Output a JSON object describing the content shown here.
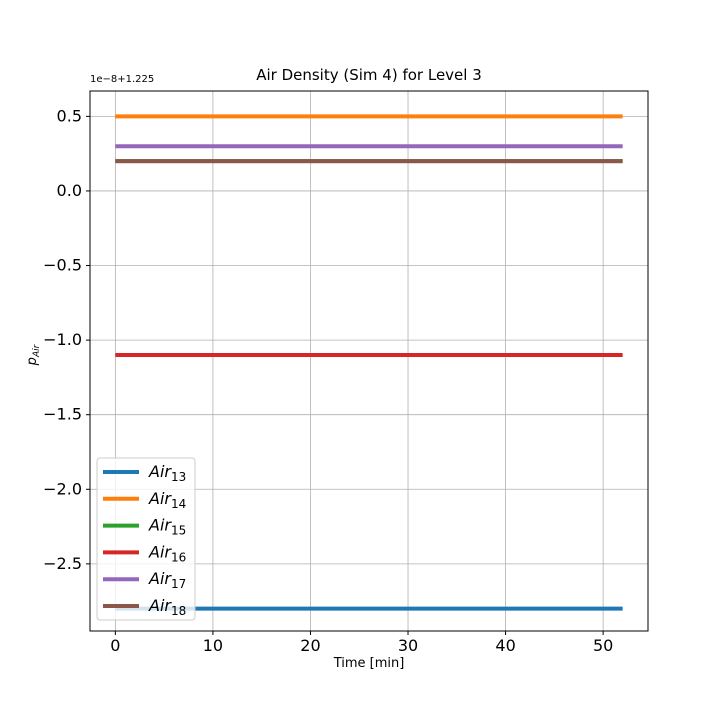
{
  "chart_data": {
    "type": "line",
    "title": "Air Density (Sim 4) for Level 3",
    "xlabel": "Time [min]",
    "ylabel": {
      "base": "p",
      "sub": "Air"
    },
    "offset_text": "1e−8+1.225",
    "xlim": [
      -2.6,
      54.6
    ],
    "ylim": [
      -2.95,
      0.67
    ],
    "x_ticks": [
      0,
      10,
      20,
      30,
      40,
      50
    ],
    "x_tick_labels": [
      "0",
      "10",
      "20",
      "30",
      "40",
      "50"
    ],
    "y_ticks": [
      0.5,
      0.0,
      -0.5,
      -1.0,
      -1.5,
      -2.0,
      -2.5
    ],
    "y_tick_labels": [
      "0.5",
      "0.0",
      "−0.5",
      "−1.0",
      "−1.5",
      "−2.0",
      "−2.5"
    ],
    "grid": true,
    "legend_position": "lower-left",
    "x": [
      0,
      52
    ],
    "series": [
      {
        "name": "Air",
        "sub": "13",
        "color": "#1f77b4",
        "values": [
          -2.8,
          -2.8
        ]
      },
      {
        "name": "Air",
        "sub": "14",
        "color": "#ff7f0e",
        "values": [
          0.5,
          0.5
        ]
      },
      {
        "name": "Air",
        "sub": "15",
        "color": "#2ca02c",
        "values": [
          0.2,
          0.2
        ]
      },
      {
        "name": "Air",
        "sub": "16",
        "color": "#d62728",
        "values": [
          -1.1,
          -1.1
        ]
      },
      {
        "name": "Air",
        "sub": "17",
        "color": "#9467bd",
        "values": [
          0.3,
          0.3
        ]
      },
      {
        "name": "Air",
        "sub": "18",
        "color": "#8c564b",
        "values": [
          0.2,
          0.2
        ]
      }
    ]
  }
}
